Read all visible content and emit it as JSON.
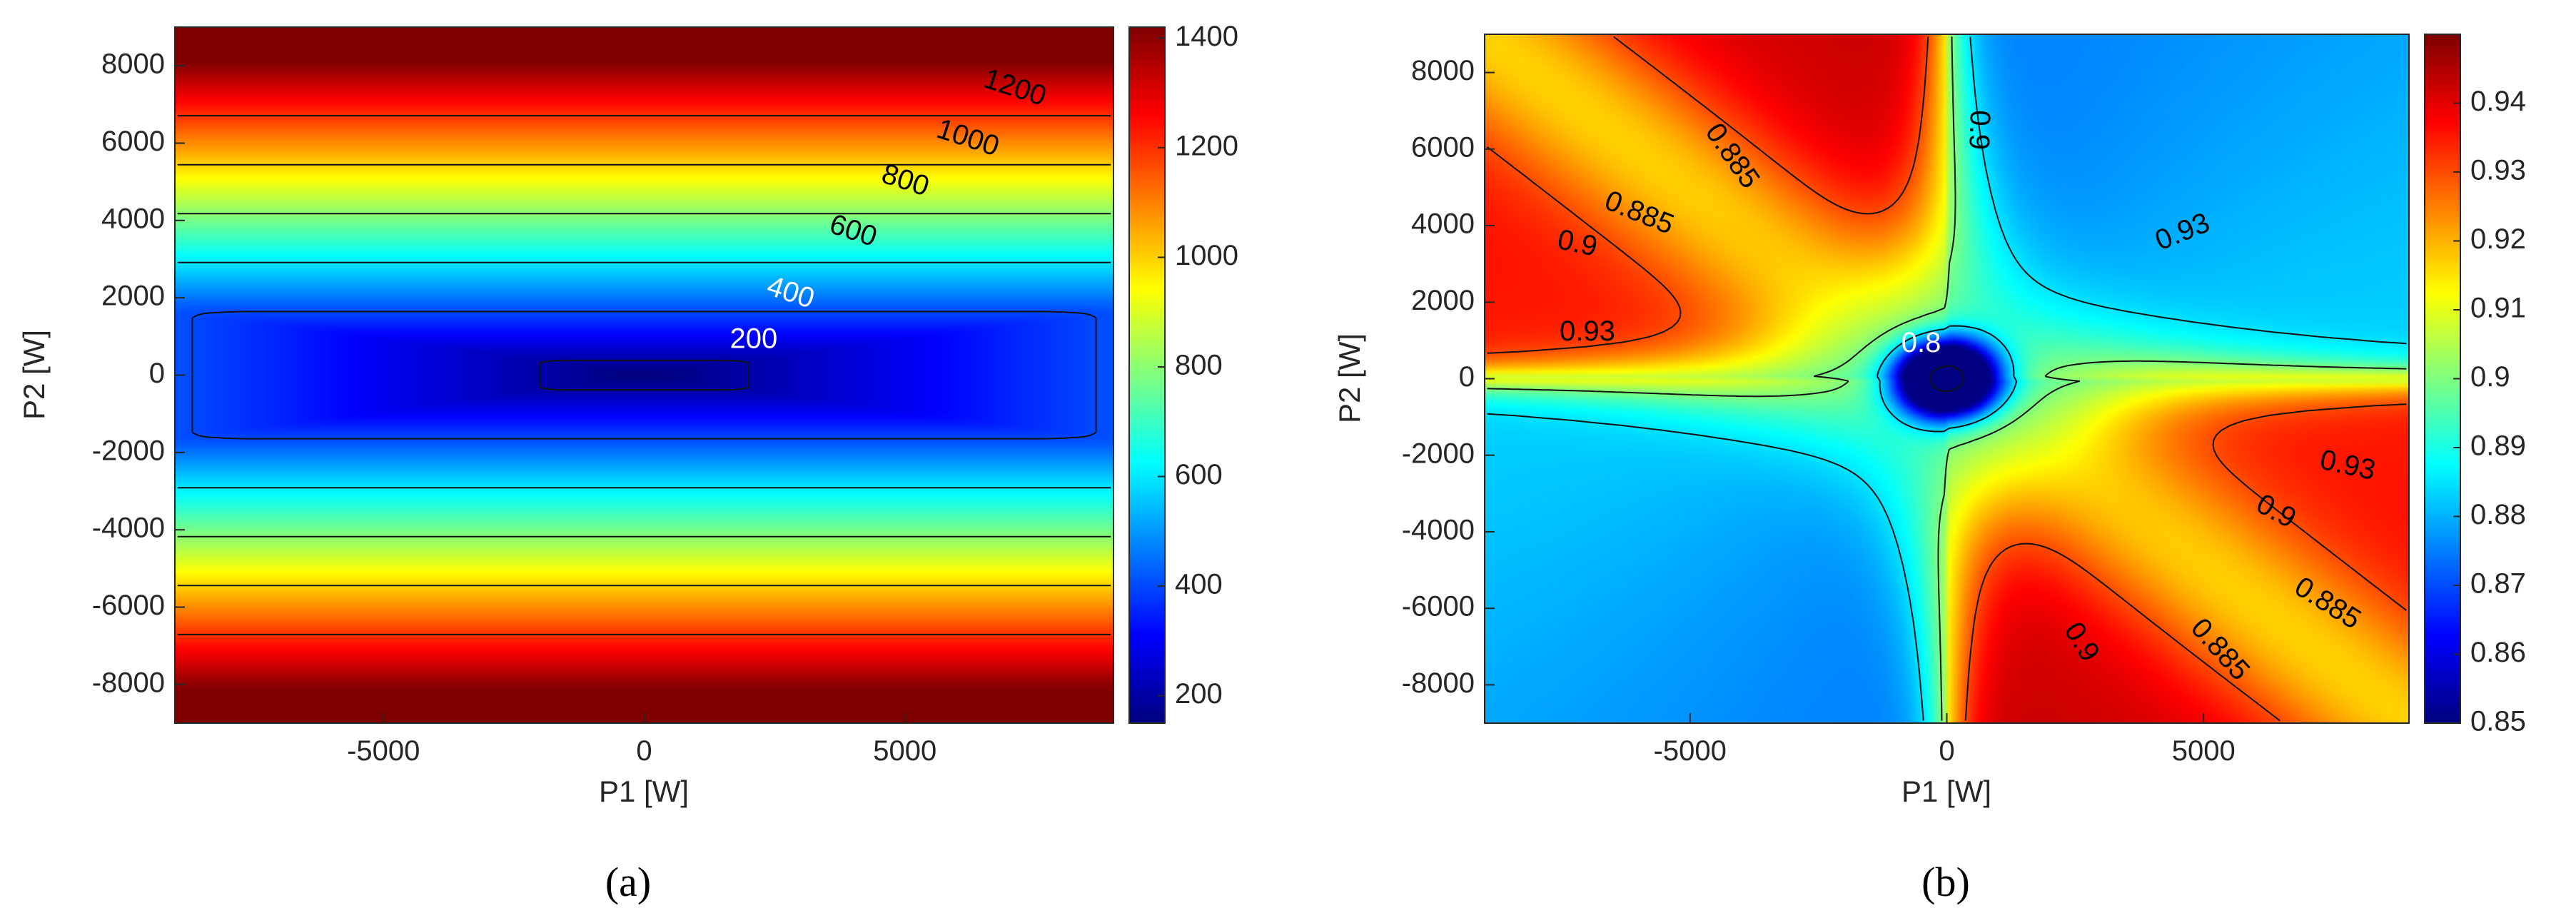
{
  "chart_data": [
    {
      "type": "heatmap",
      "panel_label": "(a)",
      "xlabel": "P1 [W]",
      "ylabel": "P2 [W]",
      "xlim": [
        -9000,
        9000
      ],
      "ylim": [
        -9000,
        9000
      ],
      "x_ticks": [
        -5000,
        0,
        5000
      ],
      "x_tick_labels": [
        "-5000",
        "0",
        "5000"
      ],
      "y_ticks": [
        8000,
        6000,
        4000,
        2000,
        0,
        -2000,
        -4000,
        -6000,
        -8000
      ],
      "y_tick_labels": [
        "8000",
        "6000",
        "4000",
        "2000",
        "0",
        "-2000",
        "-4000",
        "-6000",
        "-8000"
      ],
      "colorbar": {
        "range": [
          150,
          1420
        ],
        "ticks": [
          1400,
          1200,
          1000,
          800,
          600,
          400,
          200
        ],
        "tick_labels": [
          "1400",
          "1200",
          "1000",
          "800",
          "600",
          "400",
          "200"
        ],
        "colormap": "jet"
      },
      "contour_levels": [
        200,
        400,
        600,
        800,
        1000,
        1200
      ],
      "contour_labels": [
        {
          "text": "1200",
          "x": 7100,
          "y": 7400,
          "color": "#000000",
          "angle": 18
        },
        {
          "text": "1000",
          "x": 6200,
          "y": 6100,
          "color": "#000000",
          "angle": 18
        },
        {
          "text": "800",
          "x": 5000,
          "y": 5000,
          "color": "#000000",
          "angle": 18
        },
        {
          "text": "600",
          "x": 4000,
          "y": 3700,
          "color": "#000000",
          "angle": 18
        },
        {
          "text": "400",
          "x": 2800,
          "y": 2100,
          "color": "#ffffff",
          "angle": 18
        },
        {
          "text": "200",
          "x": 2100,
          "y": 900,
          "color": "#ffffff",
          "angle": 0
        }
      ]
    },
    {
      "type": "heatmap",
      "panel_label": "(b)",
      "xlabel": "P1 [W]",
      "ylabel": "P2 [W]",
      "xlim": [
        -9000,
        9000
      ],
      "ylim": [
        -9000,
        9000
      ],
      "x_ticks": [
        -5000,
        0,
        5000
      ],
      "x_tick_labels": [
        "-5000",
        "0",
        "5000"
      ],
      "y_ticks": [
        8000,
        6000,
        4000,
        2000,
        0,
        -2000,
        -4000,
        -6000,
        -8000
      ],
      "y_tick_labels": [
        "8000",
        "6000",
        "4000",
        "2000",
        "0",
        "-2000",
        "-4000",
        "-6000",
        "-8000"
      ],
      "colorbar": {
        "range": [
          0.85,
          0.95
        ],
        "ticks": [
          0.94,
          0.93,
          0.92,
          0.91,
          0.9,
          0.89,
          0.88,
          0.87,
          0.86,
          0.85
        ],
        "tick_labels": [
          "0.94",
          "0.93",
          "0.92",
          "0.91",
          "0.9",
          "0.89",
          "0.88",
          "0.87",
          "0.86",
          "0.85"
        ],
        "colormap": "jet"
      },
      "contour_levels": [
        0.8,
        0.885,
        0.9,
        0.93
      ],
      "contour_labels": [
        {
          "text": "0.885",
          "x": -4200,
          "y": 5800,
          "color": "#000000",
          "angle": 55
        },
        {
          "text": "0.9",
          "x": 600,
          "y": 6500,
          "color": "#000000",
          "angle": 92
        },
        {
          "text": "0.885",
          "x": -6000,
          "y": 4300,
          "color": "#000000",
          "angle": 22
        },
        {
          "text": "0.9",
          "x": -7200,
          "y": 3500,
          "color": "#000000",
          "angle": 12
        },
        {
          "text": "0.93",
          "x": 4600,
          "y": 3800,
          "color": "#000000",
          "angle": -22
        },
        {
          "text": "0.93",
          "x": -7000,
          "y": 1200,
          "color": "#000000",
          "angle": 0
        },
        {
          "text": "0.8",
          "x": -500,
          "y": 900,
          "color": "#ffffff",
          "angle": 0
        },
        {
          "text": "0.93",
          "x": 7800,
          "y": -2300,
          "color": "#000000",
          "angle": 12
        },
        {
          "text": "0.9",
          "x": 6400,
          "y": -3500,
          "color": "#000000",
          "angle": 28
        },
        {
          "text": "0.885",
          "x": 7400,
          "y": -5900,
          "color": "#000000",
          "angle": 32
        },
        {
          "text": "0.9",
          "x": 2600,
          "y": -6900,
          "color": "#000000",
          "angle": 58
        },
        {
          "text": "0.885",
          "x": 5300,
          "y": -7100,
          "color": "#000000",
          "angle": 48
        }
      ]
    }
  ]
}
